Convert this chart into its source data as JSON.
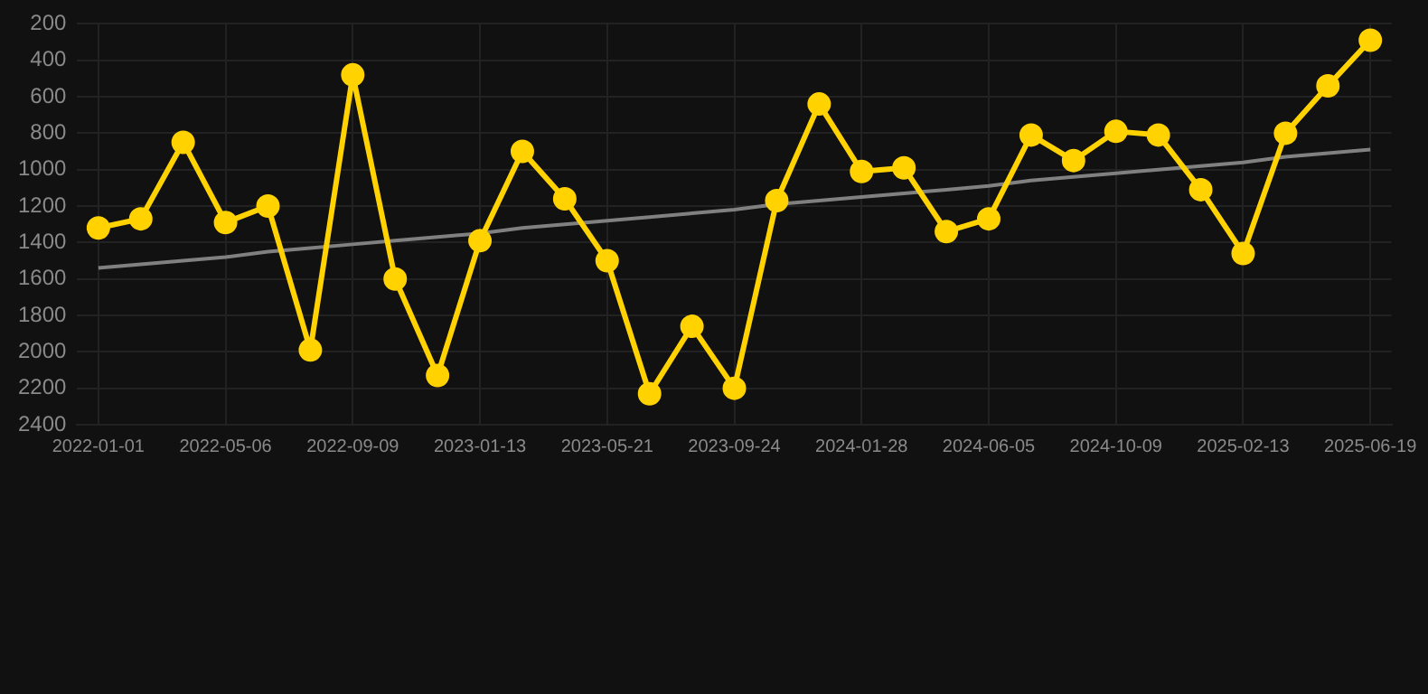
{
  "chart_data": {
    "type": "line",
    "categories": [
      "2022-01-01",
      null,
      null,
      "2022-05-06",
      null,
      null,
      "2022-09-09",
      null,
      null,
      "2023-01-13",
      null,
      null,
      "2023-05-21",
      null,
      null,
      "2023-09-24",
      null,
      null,
      "2024-01-28",
      null,
      null,
      "2024-06-05",
      null,
      null,
      "2024-10-09",
      null,
      null,
      "2025-02-13",
      null,
      null,
      "2025-06-19"
    ],
    "series": [
      {
        "color": "#ffd200",
        "marker": "circle",
        "values": [
          1320,
          1270,
          850,
          1290,
          1200,
          1990,
          480,
          1600,
          2130,
          1390,
          900,
          1160,
          1500,
          2230,
          1860,
          2200,
          1170,
          640,
          1010,
          990,
          1340,
          1270,
          810,
          950,
          790,
          810,
          1110,
          1460,
          800,
          540,
          290
        ]
      },
      {
        "type": "line",
        "color": "#808080",
        "marker": "none",
        "values": [
          1540,
          1520,
          1500,
          1480,
          1450,
          1430,
          1410,
          1390,
          1370,
          1350,
          1320,
          1300,
          1280,
          1260,
          1240,
          1220,
          1190,
          1170,
          1150,
          1130,
          1110,
          1090,
          1060,
          1040,
          1020,
          1000,
          980,
          960,
          930,
          910,
          890
        ]
      }
    ],
    "ylim": [
      2400,
      200
    ],
    "yticks": [
      200,
      400,
      600,
      800,
      1000,
      1200,
      1400,
      1600,
      1800,
      2000,
      2200,
      2400
    ],
    "grid": true,
    "legend": false
  }
}
